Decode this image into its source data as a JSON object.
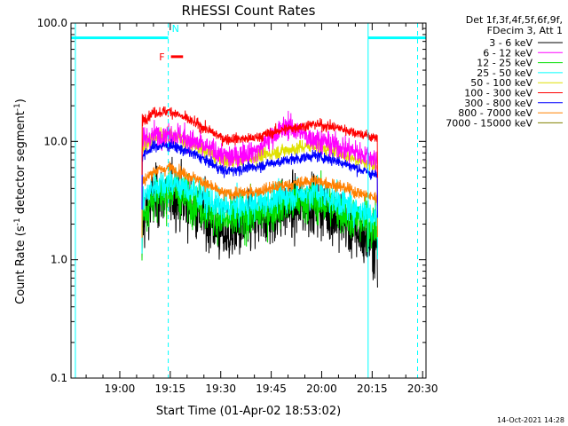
{
  "chart_data": {
    "type": "line",
    "title": "RHESSI Count Rates",
    "xlabel": "Start Time (01-Apr-02 18:53:02)",
    "ylabel": "Count Rate (s",
    "ylabel_sup1": "-1",
    "ylabel_mid": " detector segment",
    "ylabel_sup2": "-1",
    "ylabel_end": ")",
    "y_scale": "log",
    "xlim_minutes": [
      -7.5,
      98
    ],
    "ylim": [
      0.1,
      100
    ],
    "x_ticks": [
      {
        "t": 7,
        "label": "19:00"
      },
      {
        "t": 22,
        "label": "19:15"
      },
      {
        "t": 37,
        "label": "19:30"
      },
      {
        "t": 52,
        "label": "19:45"
      },
      {
        "t": 67,
        "label": "20:00"
      },
      {
        "t": 82,
        "label": "20:15"
      },
      {
        "t": 97,
        "label": "20:30"
      }
    ],
    "y_ticks": [
      {
        "v": 0.1,
        "label": "0.1"
      },
      {
        "v": 1.0,
        "label": "1.0"
      },
      {
        "v": 10.0,
        "label": "10.0"
      },
      {
        "v": 100.0,
        "label": "100.0"
      }
    ],
    "data_start_minute": 13.6,
    "data_end_minute": 83.6,
    "legend_header": [
      "Det 1f,3f,4f,5f,6f,9f,",
      "FDecim 3, Att 1"
    ],
    "series": [
      {
        "name": "3 - 6 keV",
        "color": "#000000",
        "knots": [
          [
            13.6,
            2.0
          ],
          [
            17,
            3.2
          ],
          [
            22,
            3.6
          ],
          [
            30,
            2.6
          ],
          [
            38,
            1.6
          ],
          [
            46,
            2.0
          ],
          [
            55,
            2.6
          ],
          [
            65,
            3.0
          ],
          [
            72,
            2.3
          ],
          [
            79,
            1.6
          ],
          [
            83.6,
            1.3
          ]
        ],
        "noise": 0.5
      },
      {
        "name": "6 - 12 keV",
        "color": "#ff00ff",
        "knots": [
          [
            13.6,
            10
          ],
          [
            18,
            11.5
          ],
          [
            24,
            11.5
          ],
          [
            32,
            9
          ],
          [
            40,
            7.2
          ],
          [
            48,
            8.5
          ],
          [
            52,
            11
          ],
          [
            57,
            13.5
          ],
          [
            63,
            11
          ],
          [
            70,
            9.5
          ],
          [
            78,
            8
          ],
          [
            83.6,
            7
          ]
        ],
        "noise": 0.2
      },
      {
        "name": "12 - 25 keV",
        "color": "#00e000",
        "knots": [
          [
            13.6,
            2.4
          ],
          [
            17,
            3.3
          ],
          [
            22,
            3.8
          ],
          [
            30,
            3.0
          ],
          [
            38,
            2.1
          ],
          [
            46,
            2.3
          ],
          [
            55,
            2.9
          ],
          [
            65,
            3.2
          ],
          [
            72,
            2.6
          ],
          [
            79,
            2.1
          ],
          [
            83.6,
            1.8
          ]
        ],
        "noise": 0.35
      },
      {
        "name": "25 - 50 keV",
        "color": "#00ffff",
        "knots": [
          [
            13.6,
            3.1
          ],
          [
            17,
            4.2
          ],
          [
            22,
            4.6
          ],
          [
            30,
            3.6
          ],
          [
            38,
            2.7
          ],
          [
            46,
            2.9
          ],
          [
            55,
            3.4
          ],
          [
            65,
            3.8
          ],
          [
            72,
            3.1
          ],
          [
            79,
            2.6
          ],
          [
            83.6,
            2.3
          ]
        ],
        "noise": 0.25
      },
      {
        "name": "50 - 100 keV",
        "color": "#e0e000",
        "knots": [
          [
            13.6,
            9
          ],
          [
            17,
            11
          ],
          [
            22,
            11.5
          ],
          [
            30,
            9
          ],
          [
            38,
            6.8
          ],
          [
            46,
            7.2
          ],
          [
            55,
            8.3
          ],
          [
            65,
            9.3
          ],
          [
            72,
            8
          ],
          [
            79,
            6.8
          ],
          [
            83.6,
            6.2
          ]
        ],
        "noise": 0.12
      },
      {
        "name": "100 - 300 keV",
        "color": "#ff0000",
        "knots": [
          [
            13.6,
            15
          ],
          [
            17,
            17.5
          ],
          [
            22,
            18
          ],
          [
            30,
            14
          ],
          [
            38,
            10.5
          ],
          [
            46,
            10.5
          ],
          [
            55,
            12.5
          ],
          [
            65,
            14
          ],
          [
            72,
            13
          ],
          [
            79,
            11.5
          ],
          [
            83.6,
            10.5
          ]
        ],
        "noise": 0.09
      },
      {
        "name": "300 - 800 keV",
        "color": "#0000ff",
        "knots": [
          [
            13.6,
            7.5
          ],
          [
            17,
            9
          ],
          [
            22,
            9.3
          ],
          [
            30,
            7.6
          ],
          [
            38,
            5.6
          ],
          [
            46,
            6
          ],
          [
            55,
            6.8
          ],
          [
            65,
            7.6
          ],
          [
            72,
            6.8
          ],
          [
            79,
            5.7
          ],
          [
            83.6,
            5.1
          ]
        ],
        "noise": 0.09
      },
      {
        "name": "800 - 7000 keV",
        "color": "#ff8000",
        "knots": [
          [
            13.6,
            4.5
          ],
          [
            17,
            5.6
          ],
          [
            22,
            6
          ],
          [
            30,
            4.8
          ],
          [
            38,
            3.6
          ],
          [
            46,
            3.7
          ],
          [
            55,
            4.2
          ],
          [
            65,
            4.7
          ],
          [
            72,
            4.2
          ],
          [
            79,
            3.6
          ],
          [
            83.6,
            3.3
          ]
        ],
        "noise": 0.1
      },
      {
        "name": "7000 - 15000 keV",
        "color": "#808000",
        "knots": [],
        "noise": 0
      }
    ],
    "attenuator_bar": {
      "label": "",
      "color": "#00ffff",
      "value": 75,
      "segments": [
        [
          -7.5,
          21.4
        ],
        [
          80.8,
          98
        ]
      ]
    },
    "event_markers": [
      {
        "label": "N",
        "color": "#00ffff",
        "t": 21.4,
        "y": 90
      },
      {
        "label": "F",
        "color": "#ff0000",
        "t": 21.4,
        "y": 52,
        "bar": [
          22.2,
          25.8
        ]
      }
    ],
    "dashed_lines": [
      {
        "color": "#00ffff",
        "t": 21.4
      },
      {
        "color": "#00ffff",
        "t": 95.5
      }
    ],
    "solid_lines": [
      {
        "color": "#00ffff",
        "t": -6.2
      },
      {
        "color": "#00ffff",
        "t": 80.8
      }
    ],
    "timestamp": "14-Oct-2021 14:28"
  }
}
